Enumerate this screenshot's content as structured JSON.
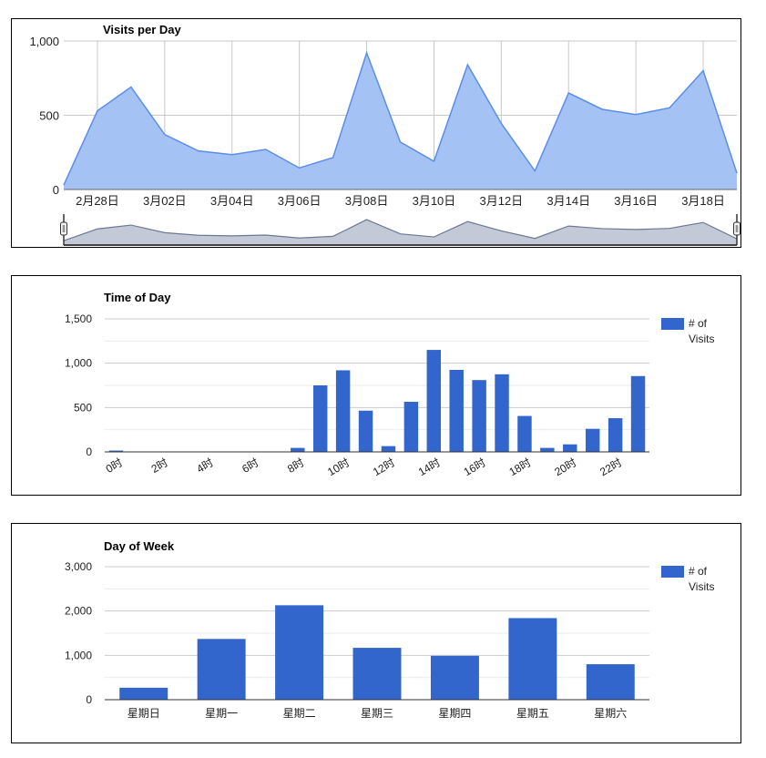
{
  "charts": [
    {
      "type": "area",
      "title": "Visits per Day",
      "ylim": [
        0,
        1000
      ],
      "y_ticks": [
        "1,000",
        "500",
        "0"
      ],
      "x_labels": [
        "2月28日",
        "3月02日",
        "3月04日",
        "3月06日",
        "3月08日",
        "3月10日",
        "3月12日",
        "3月14日",
        "3月16日",
        "3月18日"
      ],
      "dates": [
        "2月27日",
        "2月28日",
        "3月01日",
        "3月02日",
        "3月03日",
        "3月04日",
        "3月05日",
        "3月06日",
        "3月07日",
        "3月08日",
        "3月09日",
        "3月10日",
        "3月11日",
        "3月12日",
        "3月13日",
        "3月14日",
        "3月15日",
        "3月16日",
        "3月17日",
        "3月18日",
        "3月19日"
      ],
      "values": [
        30,
        530,
        690,
        370,
        260,
        235,
        270,
        145,
        215,
        920,
        320,
        190,
        840,
        445,
        125,
        650,
        540,
        505,
        550,
        800,
        110
      ],
      "colors": {
        "area": "#a4c2f4",
        "line": "#5b8ee8",
        "range": "#c3c9d6",
        "range_line": "#6b7a94"
      }
    },
    {
      "type": "bar",
      "title": "Time of Day",
      "ylim": [
        0,
        1500
      ],
      "y_ticks": [
        "1,500",
        "1,000",
        "500",
        "0"
      ],
      "categories": [
        "0时",
        "1时",
        "2时",
        "3时",
        "4时",
        "5时",
        "6时",
        "7时",
        "8时",
        "9时",
        "10时",
        "11时",
        "12时",
        "13时",
        "14时",
        "15时",
        "16时",
        "17时",
        "18时",
        "19时",
        "20时",
        "21时",
        "22时",
        "23时"
      ],
      "x_labels": [
        "0时",
        "2时",
        "4时",
        "6时",
        "8时",
        "10时",
        "12时",
        "14时",
        "16时",
        "18时",
        "20时",
        "22时"
      ],
      "series": [
        {
          "name": "# of Visits",
          "values": [
            15,
            5,
            5,
            5,
            5,
            5,
            5,
            5,
            45,
            750,
            920,
            465,
            65,
            565,
            1150,
            925,
            810,
            875,
            405,
            45,
            85,
            260,
            380,
            855
          ]
        }
      ],
      "legend": [
        "# of",
        "Visits"
      ],
      "colors": {
        "bar": "#3366cc"
      }
    },
    {
      "type": "bar",
      "title": "Day of Week",
      "ylim": [
        0,
        3000
      ],
      "y_ticks": [
        "3,000",
        "2,000",
        "1,000",
        "0"
      ],
      "categories": [
        "星期日",
        "星期一",
        "星期二",
        "星期三",
        "星期四",
        "星期五",
        "星期六"
      ],
      "series": [
        {
          "name": "# of Visits",
          "values": [
            270,
            1370,
            2130,
            1170,
            990,
            1840,
            800
          ]
        }
      ],
      "legend": [
        "# of",
        "Visits"
      ],
      "colors": {
        "bar": "#3366cc"
      }
    }
  ]
}
